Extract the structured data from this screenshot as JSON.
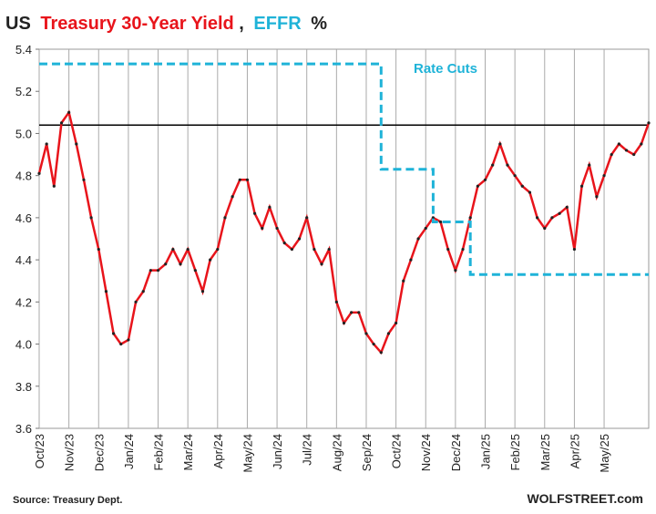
{
  "chart_data": {
    "type": "line",
    "title_parts": [
      "US",
      ",",
      "%"
    ],
    "annotation": "Rate Cuts",
    "source": "Source: Treasury Dept.",
    "credit": "WOLFSTREET.com",
    "categories": [
      "Oct/23",
      null,
      null,
      null,
      "Nov/23",
      null,
      null,
      null,
      "Dec/23",
      null,
      null,
      null,
      "Jan/24",
      null,
      null,
      null,
      "Feb/24",
      null,
      null,
      null,
      "Mar/24",
      null,
      null,
      null,
      "Apr/24",
      null,
      null,
      null,
      "May/24",
      null,
      null,
      null,
      "Jun/24",
      null,
      null,
      null,
      "Jul/24",
      null,
      null,
      null,
      "Aug/24",
      null,
      null,
      null,
      "Sep/24",
      null,
      null,
      null,
      "Oct/24",
      null,
      null,
      null,
      "Nov/24",
      null,
      null,
      null,
      "Dec/24",
      null,
      null,
      null,
      "Jan/25",
      null,
      null,
      null,
      "Feb/25",
      null,
      null,
      null,
      "Mar/25",
      null,
      null,
      null,
      "Apr/25",
      null,
      null,
      null,
      "May/25",
      null,
      null,
      null,
      null,
      null,
      null
    ],
    "series": [
      {
        "name": "Treasury 30-Year Yield",
        "color": "#e8141b",
        "style": "solid",
        "markers": true,
        "values": [
          4.81,
          4.95,
          4.75,
          5.05,
          5.1,
          4.95,
          4.78,
          4.6,
          4.45,
          4.25,
          4.05,
          4.0,
          4.02,
          4.2,
          4.25,
          4.35,
          4.35,
          4.38,
          4.45,
          4.38,
          4.45,
          4.35,
          4.25,
          4.4,
          4.45,
          4.6,
          4.7,
          4.78,
          4.78,
          4.62,
          4.55,
          4.65,
          4.55,
          4.48,
          4.45,
          4.5,
          4.6,
          4.45,
          4.38,
          4.45,
          4.2,
          4.1,
          4.15,
          4.15,
          4.05,
          4.0,
          3.96,
          4.05,
          4.1,
          4.3,
          4.4,
          4.5,
          4.55,
          4.6,
          4.58,
          4.45,
          4.35,
          4.45,
          4.6,
          4.75,
          4.78,
          4.85,
          4.95,
          4.85,
          4.8,
          4.75,
          4.72,
          4.6,
          4.55,
          4.6,
          4.62,
          4.65,
          4.45,
          4.75,
          4.85,
          4.7,
          4.8,
          4.9,
          4.95,
          4.92,
          4.9,
          4.95,
          5.05
        ]
      },
      {
        "name": "EFFR",
        "color": "#1fb3d8",
        "style": "dashed",
        "step": true,
        "markers": false,
        "values": [
          5.33,
          5.33,
          5.33,
          5.33,
          5.33,
          5.33,
          5.33,
          5.33,
          5.33,
          5.33,
          5.33,
          5.33,
          5.33,
          5.33,
          5.33,
          5.33,
          5.33,
          5.33,
          5.33,
          5.33,
          5.33,
          5.33,
          5.33,
          5.33,
          5.33,
          5.33,
          5.33,
          5.33,
          5.33,
          5.33,
          5.33,
          5.33,
          5.33,
          5.33,
          5.33,
          5.33,
          5.33,
          5.33,
          5.33,
          5.33,
          5.33,
          5.33,
          5.33,
          5.33,
          5.33,
          5.33,
          4.83,
          4.83,
          4.83,
          4.83,
          4.83,
          4.83,
          4.83,
          4.58,
          4.58,
          4.58,
          4.58,
          4.58,
          4.33,
          4.33,
          4.33,
          4.33,
          4.33,
          4.33,
          4.33,
          4.33,
          4.33,
          4.33,
          4.33,
          4.33,
          4.33,
          4.33,
          4.33,
          4.33,
          4.33,
          4.33,
          4.33,
          4.33,
          4.33,
          4.33,
          4.33,
          4.33,
          4.33
        ]
      }
    ],
    "reference_line": 5.04,
    "ylim": [
      3.6,
      5.4
    ],
    "yticks": [
      3.6,
      3.8,
      {
        "value": 4,
        "label": "4.0"
      },
      4.2,
      4.4,
      4.6,
      4.8,
      {
        "value": 5,
        "label": "5.0"
      },
      5.2,
      5.4
    ],
    "grid": "x"
  }
}
